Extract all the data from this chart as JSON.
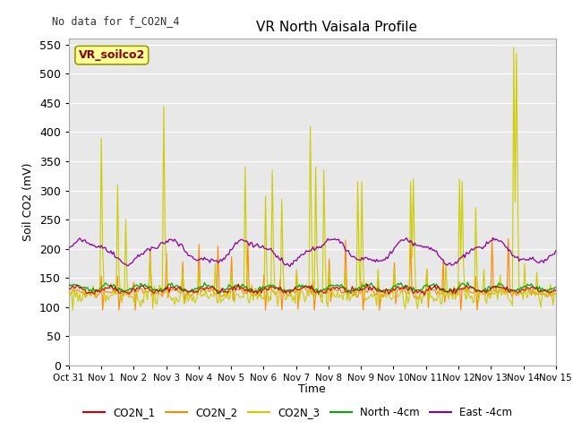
{
  "title": "VR North Vaisala Profile",
  "subtitle": "No data for f_CO2N_4",
  "ylabel": "Soil CO2 (mV)",
  "xlabel": "Time",
  "ylim": [
    0,
    560
  ],
  "yticks": [
    0,
    50,
    100,
    150,
    200,
    250,
    300,
    350,
    400,
    450,
    500,
    550
  ],
  "xtick_labels": [
    "Oct 31",
    "Nov 1",
    "Nov 2",
    "Nov 3",
    "Nov 4",
    "Nov 5",
    "Nov 6",
    "Nov 7",
    "Nov 8",
    "Nov 9",
    "Nov 10",
    "Nov 11",
    "Nov 12",
    "Nov 13",
    "Nov 14",
    "Nov 15"
  ],
  "legend_entries": [
    "CO2N_1",
    "CO2N_2",
    "CO2N_3",
    "North -4cm",
    "East -4cm"
  ],
  "legend_colors": [
    "#cc0000",
    "#ff8800",
    "#cccc00",
    "#00aa00",
    "#880099"
  ],
  "series_colors": {
    "CO2N_1": "#cc0000",
    "CO2N_2": "#ff8800",
    "CO2N_3": "#cccc00",
    "North": "#00aa00",
    "East": "#880099"
  },
  "box_label": "VR_soilco2",
  "box_color": "#ffff99",
  "box_border": "#999900",
  "box_text_color": "#880000",
  "plot_bg_color": "#e8e8e8",
  "white_bg_below": 50
}
